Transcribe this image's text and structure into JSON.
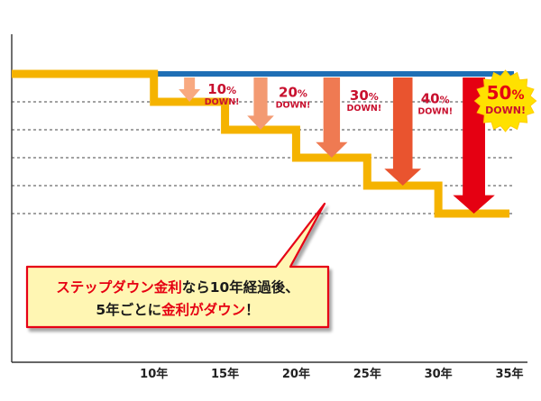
{
  "chart_data": {
    "type": "line",
    "x_ticks": [
      "10年",
      "15年",
      "20年",
      "25年",
      "30年",
      "35年"
    ],
    "x": [
      0,
      10,
      15,
      20,
      25,
      30,
      35
    ],
    "xlim": [
      0,
      35
    ],
    "ylim": [
      0,
      120
    ],
    "grid": true,
    "series": [
      {
        "key": "flat",
        "values": [
          100,
          100,
          100,
          100,
          100,
          100,
          100
        ],
        "color": "#1f6fb5"
      },
      {
        "key": "step",
        "values": [
          100,
          90,
          80,
          70,
          60,
          50,
          50
        ],
        "color": "#f5b300"
      }
    ],
    "reductions": [
      {
        "at": 12.5,
        "value": 10,
        "label_big": "10",
        "label_small": "%",
        "down": "DOWN!",
        "color": "#f8a980"
      },
      {
        "at": 17.5,
        "value": 20,
        "label_big": "20",
        "label_small": "%",
        "down": "DOWN!",
        "color": "#f39a72"
      },
      {
        "at": 22.5,
        "value": 30,
        "label_big": "30",
        "label_small": "%",
        "down": "DOWN!",
        "color": "#ef7a52"
      },
      {
        "at": 27.5,
        "value": 40,
        "label_big": "40",
        "label_small": "%",
        "down": "DOWN!",
        "color": "#e9542f"
      },
      {
        "at": 32.5,
        "value": 50,
        "label_big": "50",
        "label_small": "%",
        "down": "DOWN!",
        "color": "#e50012"
      }
    ],
    "callout": {
      "line1_red": "ステップダウン金利",
      "line1_rest": "なら10年経過後、",
      "line2_a": "5年ごとに",
      "line2_red": "金利がダウン",
      "line2_b": "！"
    }
  }
}
